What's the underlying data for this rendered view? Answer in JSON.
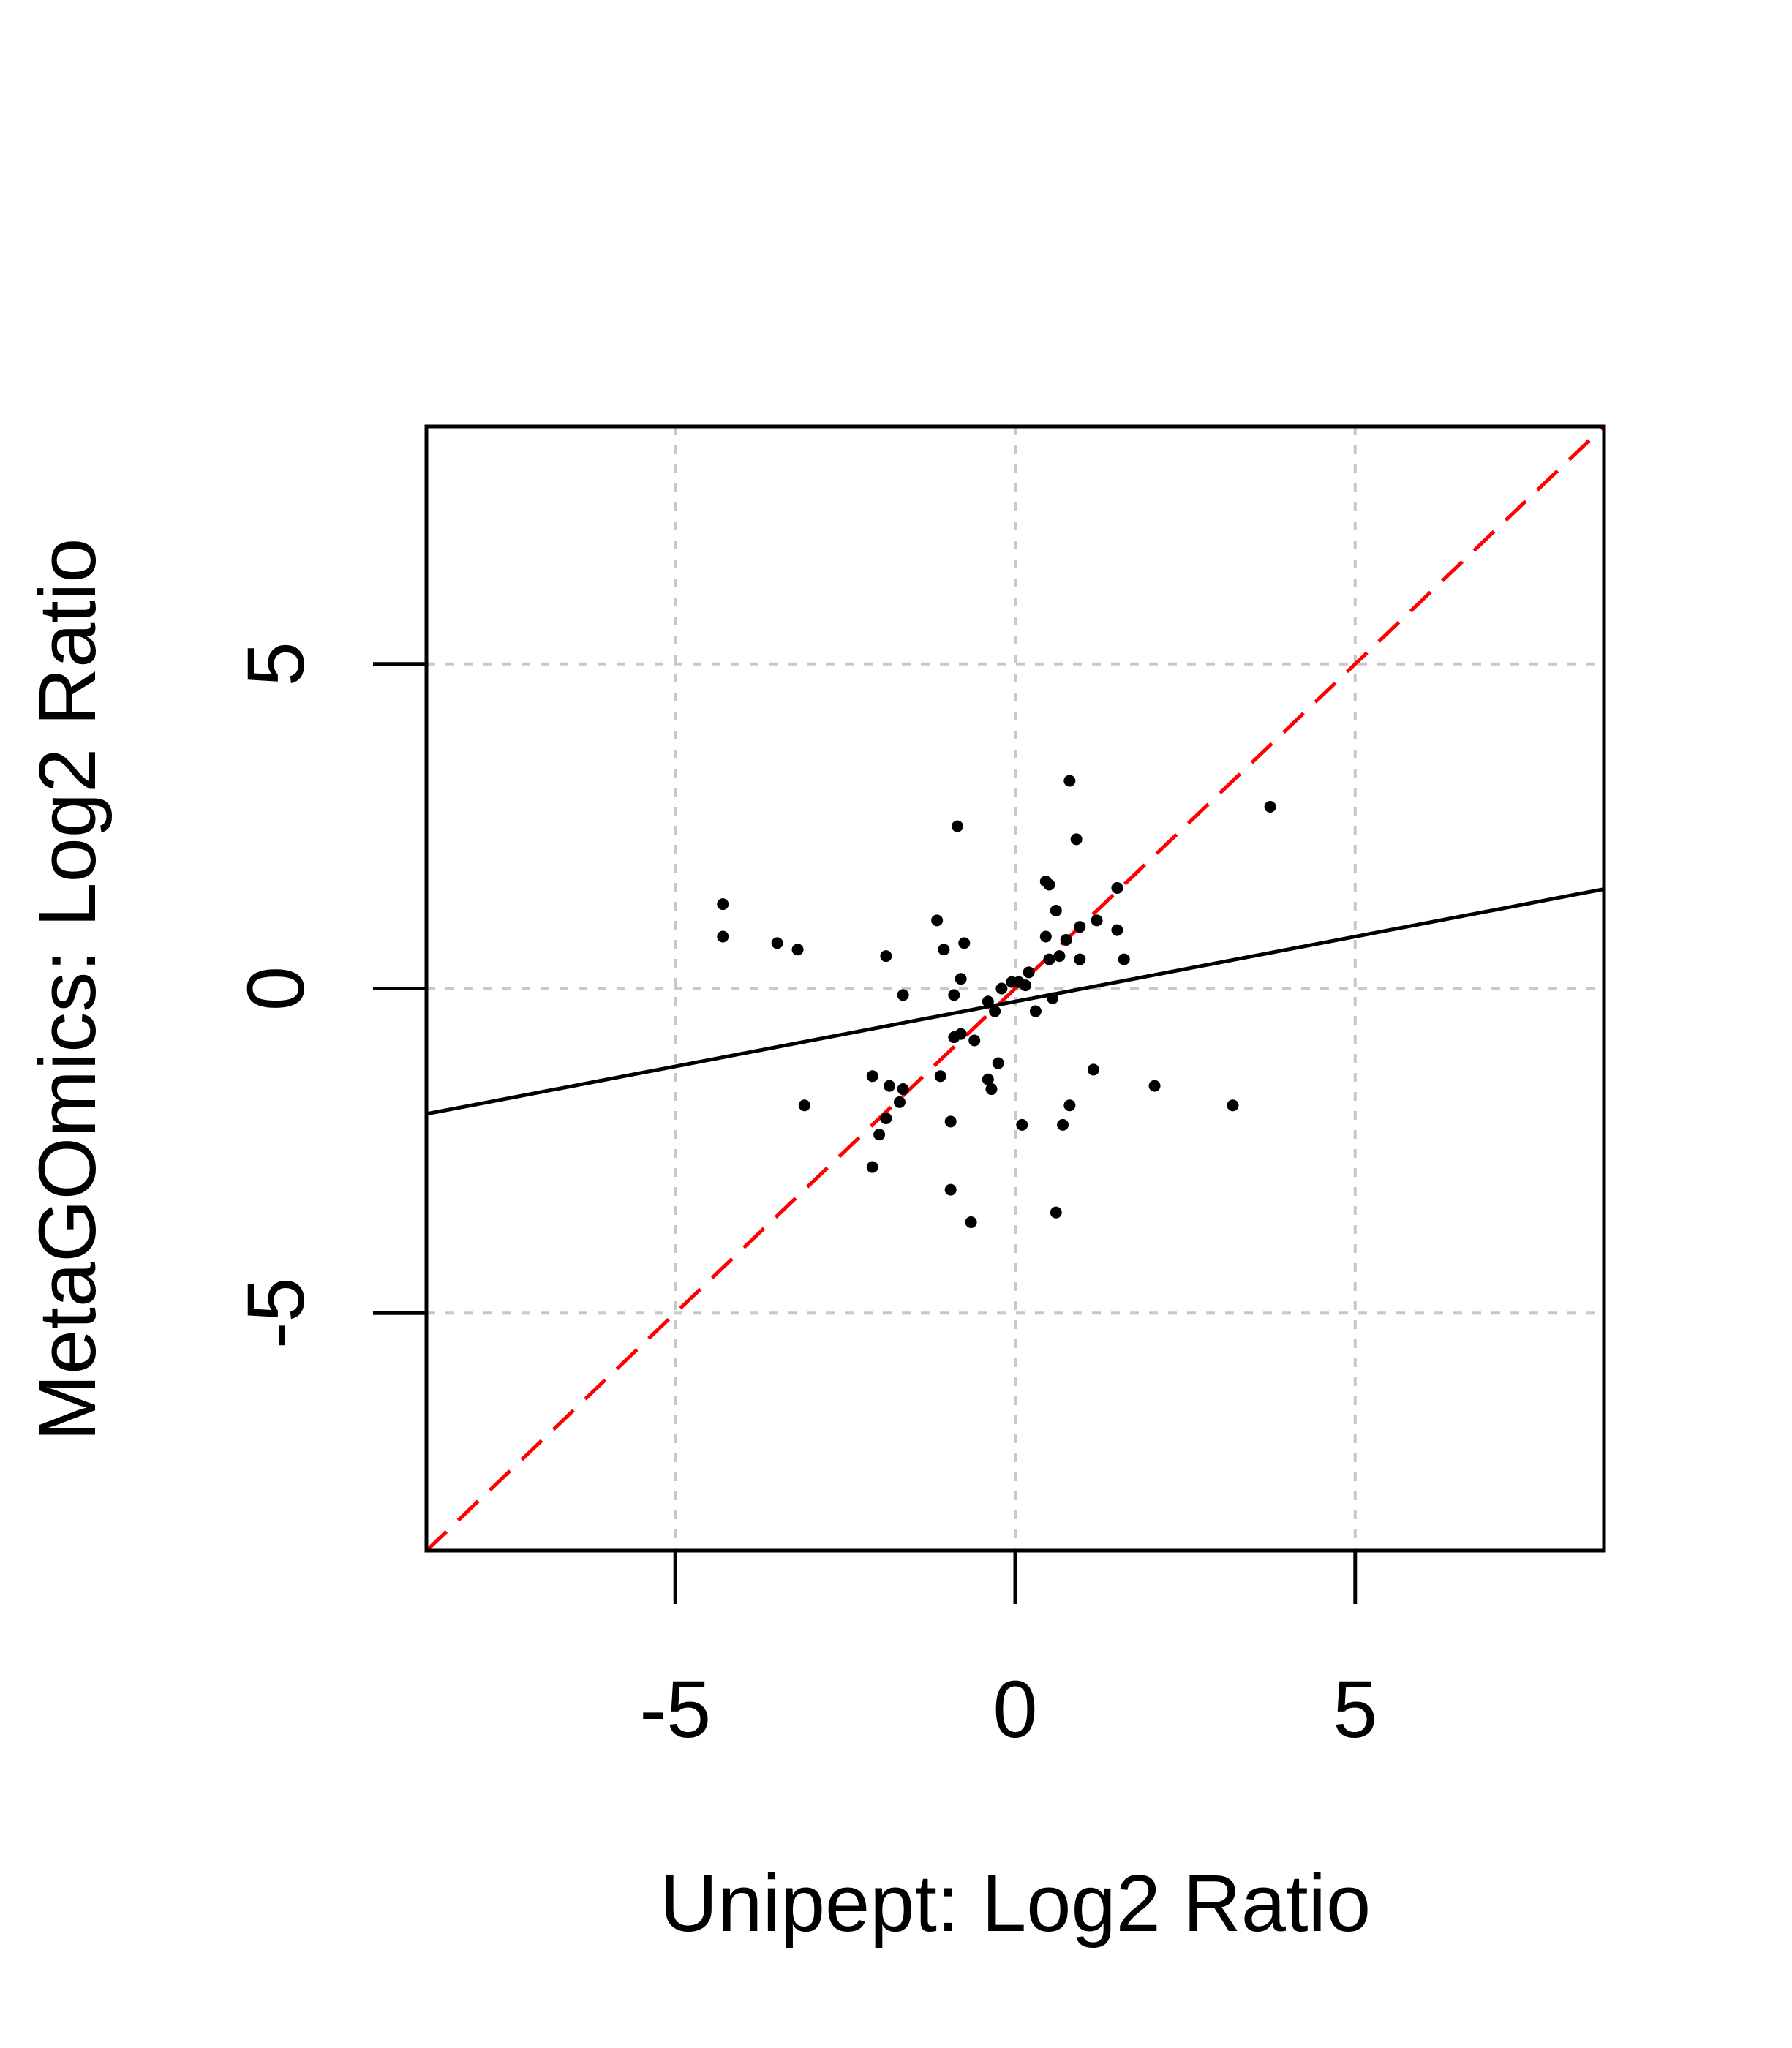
{
  "chart_data": {
    "type": "scatter",
    "title": "",
    "xlabel": "Unipept: Log2 Ratio",
    "ylabel": "MetaGOmics: Log2 Ratio",
    "xlim": [
      -8.66,
      8.66
    ],
    "ylim": [
      -8.66,
      8.66
    ],
    "x_ticks": [
      -5,
      0,
      5
    ],
    "y_ticks": [
      -5,
      0,
      5
    ],
    "x_tick_labels": [
      "-5",
      "0",
      "5"
    ],
    "y_tick_labels": [
      "-5",
      "0",
      "5"
    ],
    "grid": true,
    "points": [
      {
        "x": -4.3,
        "y": 1.3
      },
      {
        "x": -4.3,
        "y": 0.8
      },
      {
        "x": -3.5,
        "y": 0.7
      },
      {
        "x": -3.2,
        "y": 0.6
      },
      {
        "x": -3.1,
        "y": -1.8
      },
      {
        "x": -2.1,
        "y": -1.35
      },
      {
        "x": -2.1,
        "y": -2.75
      },
      {
        "x": -2.0,
        "y": -2.25
      },
      {
        "x": -1.9,
        "y": -2.0
      },
      {
        "x": -1.9,
        "y": 0.5
      },
      {
        "x": -1.85,
        "y": -1.5
      },
      {
        "x": -1.7,
        "y": -1.75
      },
      {
        "x": -1.65,
        "y": -0.1
      },
      {
        "x": -1.65,
        "y": -1.55
      },
      {
        "x": -1.15,
        "y": 1.05
      },
      {
        "x": -1.1,
        "y": -1.35
      },
      {
        "x": -1.05,
        "y": 0.6
      },
      {
        "x": -0.95,
        "y": -2.05
      },
      {
        "x": -0.95,
        "y": -3.1
      },
      {
        "x": -0.9,
        "y": -0.1
      },
      {
        "x": -0.9,
        "y": -0.75
      },
      {
        "x": -0.85,
        "y": 2.5
      },
      {
        "x": -0.8,
        "y": 0.15
      },
      {
        "x": -0.8,
        "y": -0.7
      },
      {
        "x": -0.75,
        "y": 0.7
      },
      {
        "x": -0.65,
        "y": -3.6
      },
      {
        "x": -0.6,
        "y": -0.8
      },
      {
        "x": -0.4,
        "y": -0.2
      },
      {
        "x": -0.4,
        "y": -1.4
      },
      {
        "x": -0.35,
        "y": -1.55
      },
      {
        "x": -0.3,
        "y": -0.35
      },
      {
        "x": -0.25,
        "y": -1.15
      },
      {
        "x": -0.2,
        "y": 0.0
      },
      {
        "x": -0.05,
        "y": 0.1
      },
      {
        "x": 0.05,
        "y": 0.1
      },
      {
        "x": 0.1,
        "y": -2.1
      },
      {
        "x": 0.15,
        "y": 0.05
      },
      {
        "x": 0.2,
        "y": 0.25
      },
      {
        "x": 0.3,
        "y": -0.35
      },
      {
        "x": 0.45,
        "y": 1.65
      },
      {
        "x": 0.45,
        "y": 0.8
      },
      {
        "x": 0.5,
        "y": 1.6
      },
      {
        "x": 0.5,
        "y": 0.45
      },
      {
        "x": 0.55,
        "y": -0.15
      },
      {
        "x": 0.6,
        "y": 1.2
      },
      {
        "x": 0.6,
        "y": -3.45
      },
      {
        "x": 0.65,
        "y": 0.5
      },
      {
        "x": 0.7,
        "y": -2.1
      },
      {
        "x": 0.75,
        "y": 0.75
      },
      {
        "x": 0.8,
        "y": 3.2
      },
      {
        "x": 0.8,
        "y": -1.8
      },
      {
        "x": 0.9,
        "y": 2.3
      },
      {
        "x": 0.95,
        "y": 0.95
      },
      {
        "x": 0.95,
        "y": 0.45
      },
      {
        "x": 1.15,
        "y": -1.25
      },
      {
        "x": 1.2,
        "y": 1.05
      },
      {
        "x": 1.5,
        "y": 1.55
      },
      {
        "x": 1.5,
        "y": 0.9
      },
      {
        "x": 1.6,
        "y": 0.45
      },
      {
        "x": 2.05,
        "y": -1.5
      },
      {
        "x": 3.2,
        "y": -1.8
      },
      {
        "x": 3.75,
        "y": 2.8
      }
    ],
    "fit_line": {
      "slope": 0.2,
      "intercept": -0.2,
      "color": "#000000",
      "style": "solid"
    },
    "identity_line": {
      "slope": 1,
      "intercept": 0,
      "color": "#ff0000",
      "style": "dashed"
    },
    "colors": {
      "points": "#000000",
      "grid": "#c8c8c8",
      "axes": "#000000"
    }
  }
}
